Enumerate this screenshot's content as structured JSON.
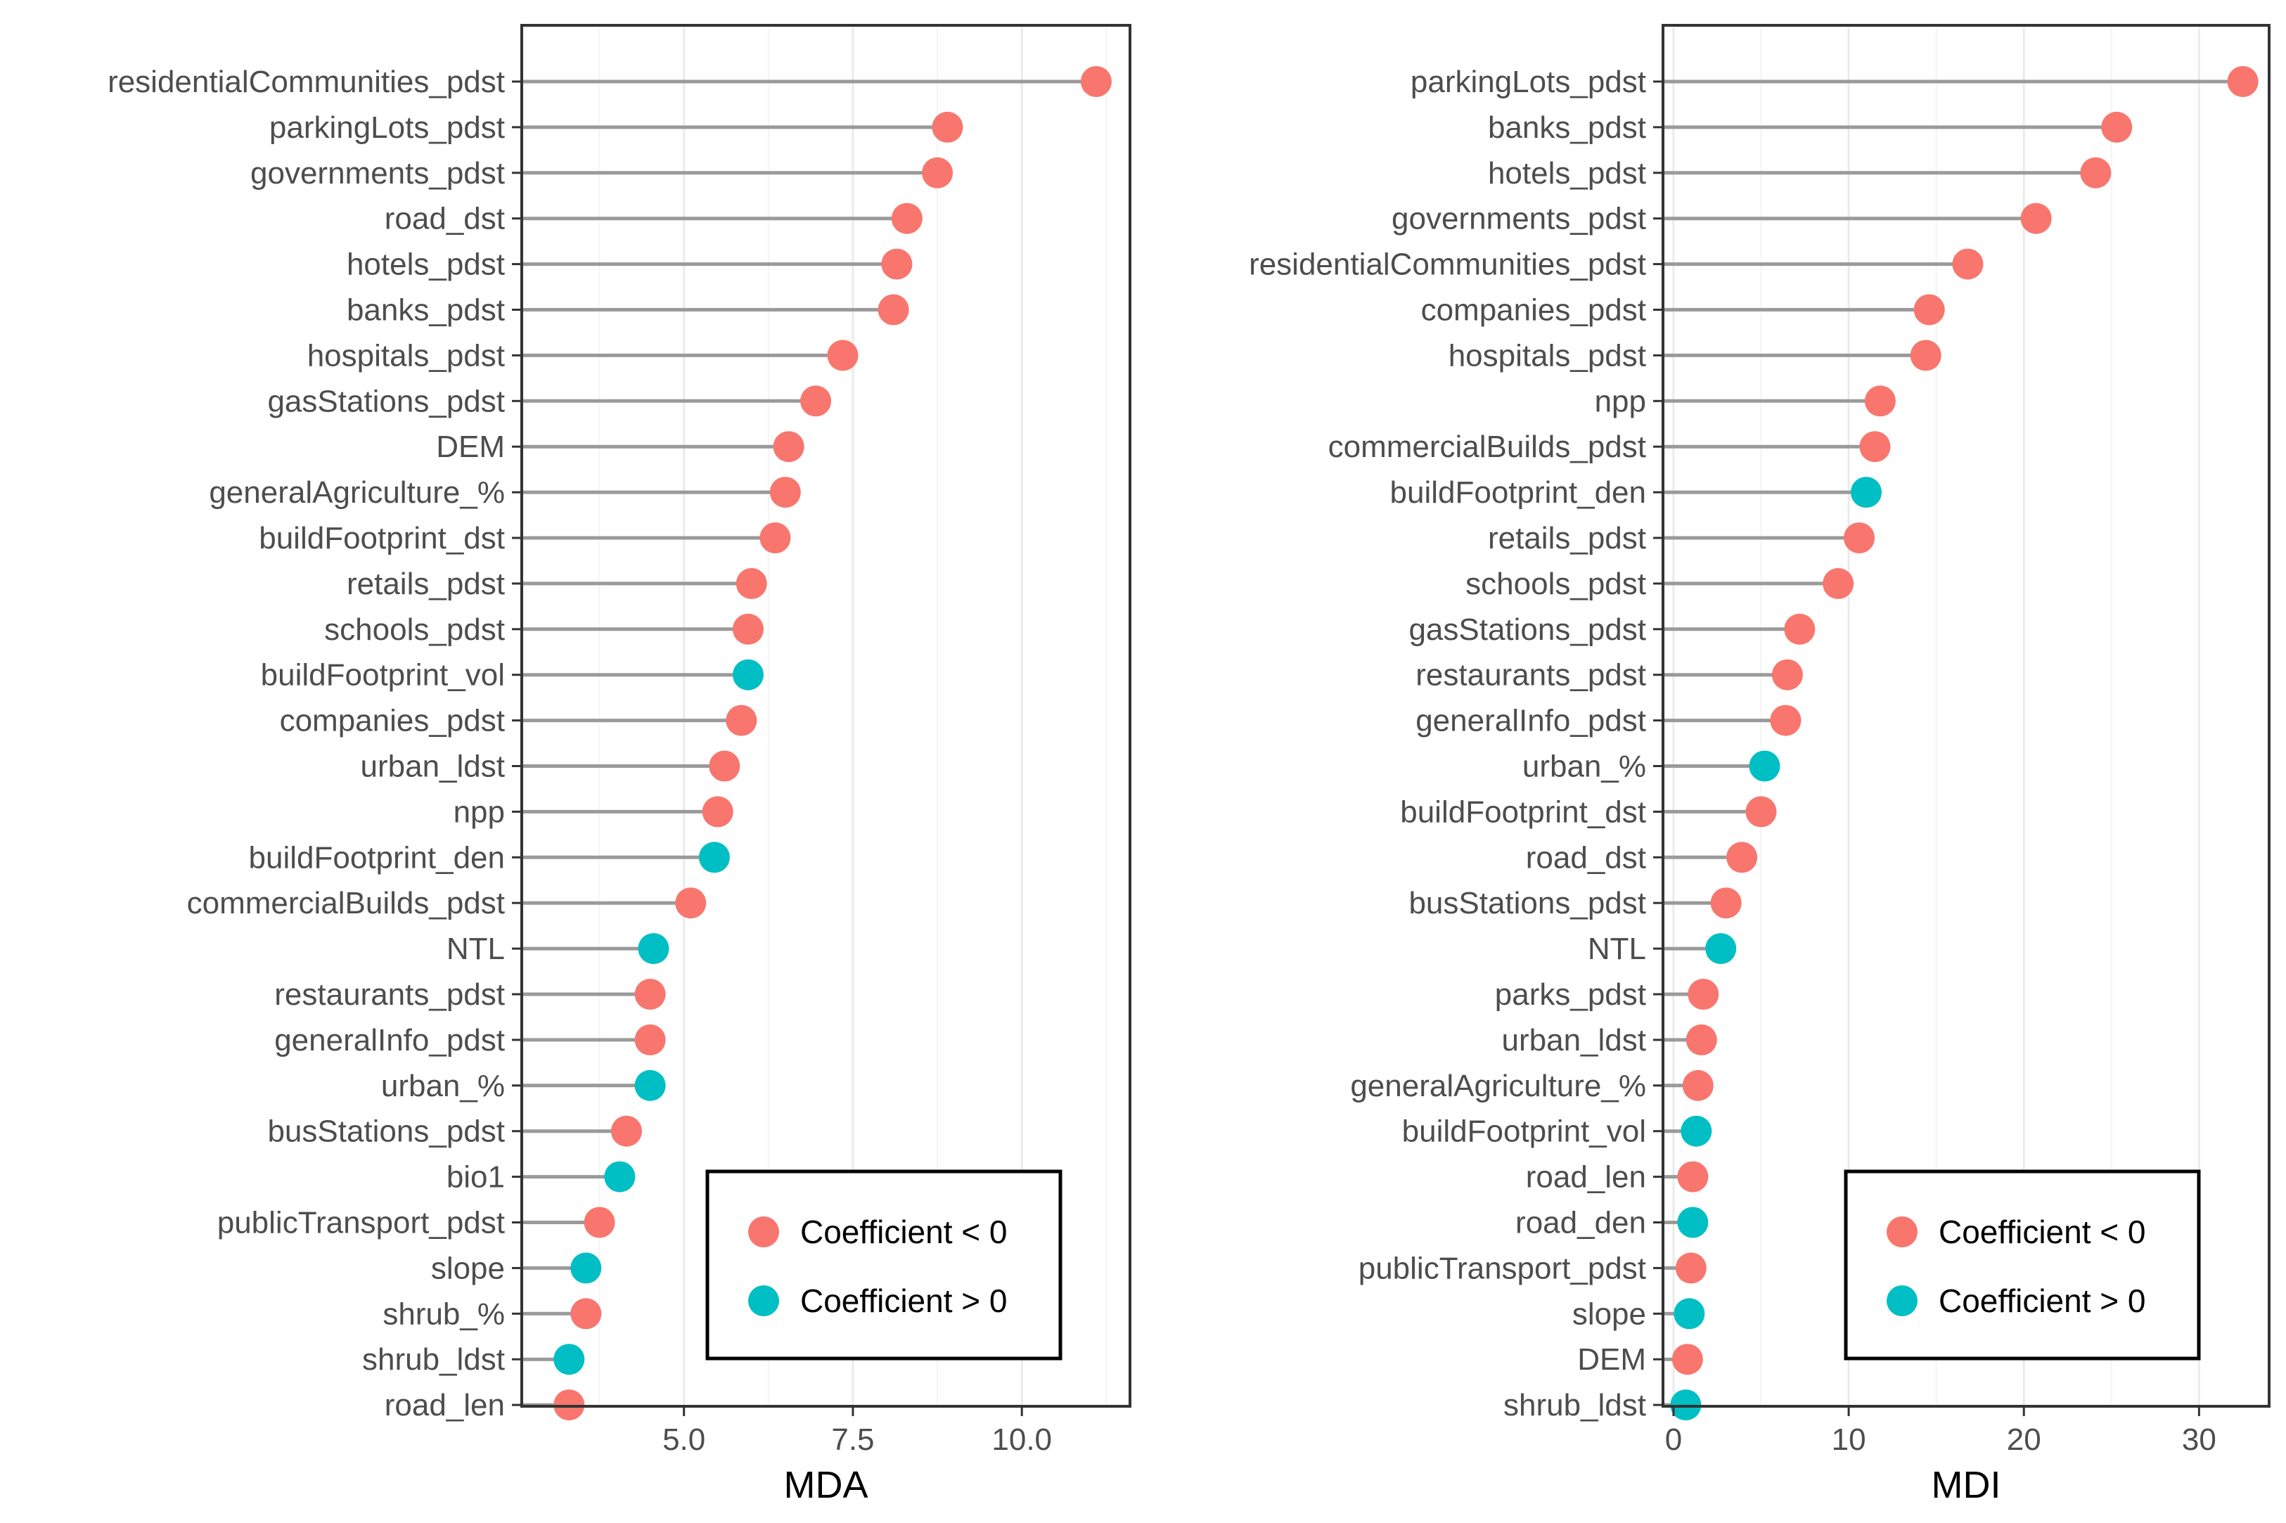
{
  "chart_data": [
    {
      "type": "lollipop",
      "xlabel": "MDA",
      "xlim": [
        2.6,
        11.6
      ],
      "xticks": [
        5.0,
        7.5,
        10.0
      ],
      "xtick_labels": [
        "5.0",
        "7.5",
        "10.0"
      ],
      "series_colors": {
        "neg": "#f8766d",
        "pos": "#00bfc4"
      },
      "legend": {
        "position": "bottom-right",
        "items": [
          {
            "key": "neg",
            "label": "Coefficient < 0"
          },
          {
            "key": "pos",
            "label": "Coefficient > 0"
          }
        ]
      },
      "categories": [
        "residentialCommunities_pdst",
        "parkingLots_pdst",
        "governments_pdst",
        "road_dst",
        "hotels_pdst",
        "banks_pdst",
        "hospitals_pdst",
        "gasStations_pdst",
        "DEM",
        "generalAgriculture_%",
        "buildFootprint_dst",
        "retails_pdst",
        "schools_pdst",
        "buildFootprint_vol",
        "companies_pdst",
        "urban_ldst",
        "npp",
        "buildFootprint_den",
        "commercialBuilds_pdst",
        "NTL",
        "restaurants_pdst",
        "generalInfo_pdst",
        "urban_%",
        "busStations_pdst",
        "bio1",
        "publicTransport_pdst",
        "slope",
        "shrub_%",
        "shrub_ldst",
        "road_len"
      ],
      "values": [
        11.1,
        8.9,
        8.75,
        8.3,
        8.15,
        8.1,
        7.35,
        6.95,
        6.55,
        6.5,
        6.35,
        6.0,
        5.95,
        5.95,
        5.85,
        5.6,
        5.5,
        5.45,
        5.1,
        4.55,
        4.5,
        4.5,
        4.5,
        4.15,
        4.05,
        3.75,
        3.55,
        3.55,
        3.3,
        3.3
      ],
      "signs": [
        "neg",
        "neg",
        "neg",
        "neg",
        "neg",
        "neg",
        "neg",
        "neg",
        "neg",
        "neg",
        "neg",
        "neg",
        "neg",
        "pos",
        "neg",
        "neg",
        "neg",
        "pos",
        "neg",
        "pos",
        "neg",
        "neg",
        "pos",
        "neg",
        "pos",
        "neg",
        "pos",
        "neg",
        "pos",
        "neg"
      ]
    },
    {
      "type": "lollipop",
      "xlabel": "MDI",
      "xlim": [
        -0.6,
        34.0
      ],
      "xticks": [
        0,
        10,
        20,
        30
      ],
      "xtick_labels": [
        "0",
        "10",
        "20",
        "30"
      ],
      "series_colors": {
        "neg": "#f8766d",
        "pos": "#00bfc4"
      },
      "legend": {
        "position": "bottom-right",
        "items": [
          {
            "key": "neg",
            "label": "Coefficient < 0"
          },
          {
            "key": "pos",
            "label": "Coefficient > 0"
          }
        ]
      },
      "categories": [
        "parkingLots_pdst",
        "banks_pdst",
        "hotels_pdst",
        "governments_pdst",
        "residentialCommunities_pdst",
        "companies_pdst",
        "hospitals_pdst",
        "npp",
        "commercialBuilds_pdst",
        "buildFootprint_den",
        "retails_pdst",
        "schools_pdst",
        "gasStations_pdst",
        "restaurants_pdst",
        "generalInfo_pdst",
        "urban_%",
        "buildFootprint_dst",
        "road_dst",
        "busStations_pdst",
        "NTL",
        "parks_pdst",
        "urban_ldst",
        "generalAgriculture_%",
        "buildFootprint_vol",
        "road_len",
        "road_den",
        "publicTransport_pdst",
        "slope",
        "DEM",
        "shrub_ldst"
      ],
      "values": [
        32.5,
        25.3,
        24.1,
        20.7,
        16.8,
        14.6,
        14.4,
        11.8,
        11.5,
        11.0,
        10.6,
        9.4,
        7.2,
        6.5,
        6.4,
        5.2,
        5.0,
        3.9,
        3.0,
        2.7,
        1.7,
        1.6,
        1.4,
        1.3,
        1.1,
        1.1,
        1.0,
        0.9,
        0.8,
        0.7
      ],
      "signs": [
        "neg",
        "neg",
        "neg",
        "neg",
        "neg",
        "neg",
        "neg",
        "neg",
        "neg",
        "pos",
        "neg",
        "neg",
        "neg",
        "neg",
        "neg",
        "pos",
        "neg",
        "neg",
        "neg",
        "pos",
        "neg",
        "neg",
        "neg",
        "pos",
        "neg",
        "pos",
        "neg",
        "pos",
        "neg",
        "pos"
      ]
    }
  ]
}
